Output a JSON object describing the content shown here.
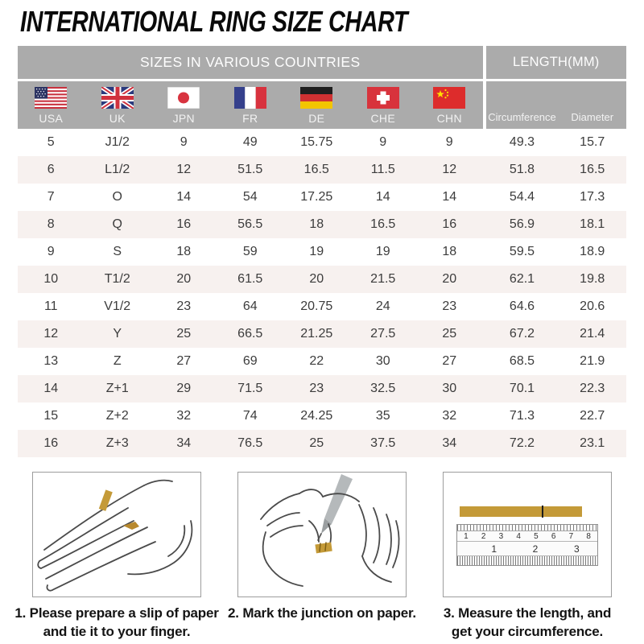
{
  "page_title": "INTERNATIONAL RING SIZE CHART",
  "chart_data": {
    "type": "table",
    "title": "INTERNATIONAL RING SIZE CHART",
    "header_groups": [
      {
        "label": "SIZES IN VARIOUS COUNTRIES",
        "span": 7
      },
      {
        "label": "LENGTH(MM)",
        "span": 2
      }
    ],
    "columns": [
      "USA",
      "UK",
      "JPN",
      "FR",
      "DE",
      "CHE",
      "CHN",
      "Circumference",
      "Diameter"
    ],
    "rows": [
      [
        "5",
        "J1/2",
        "9",
        "49",
        "15.75",
        "9",
        "9",
        "49.3",
        "15.7"
      ],
      [
        "6",
        "L1/2",
        "12",
        "51.5",
        "16.5",
        "11.5",
        "12",
        "51.8",
        "16.5"
      ],
      [
        "7",
        "O",
        "14",
        "54",
        "17.25",
        "14",
        "14",
        "54.4",
        "17.3"
      ],
      [
        "8",
        "Q",
        "16",
        "56.5",
        "18",
        "16.5",
        "16",
        "56.9",
        "18.1"
      ],
      [
        "9",
        "S",
        "18",
        "59",
        "19",
        "19",
        "18",
        "59.5",
        "18.9"
      ],
      [
        "10",
        "T1/2",
        "20",
        "61.5",
        "20",
        "21.5",
        "20",
        "62.1",
        "19.8"
      ],
      [
        "11",
        "V1/2",
        "23",
        "64",
        "20.75",
        "24",
        "23",
        "64.6",
        "20.6"
      ],
      [
        "12",
        "Y",
        "25",
        "66.5",
        "21.25",
        "27.5",
        "25",
        "67.2",
        "21.4"
      ],
      [
        "13",
        "Z",
        "27",
        "69",
        "22",
        "30",
        "27",
        "68.5",
        "21.9"
      ],
      [
        "14",
        "Z+1",
        "29",
        "71.5",
        "23",
        "32.5",
        "30",
        "70.1",
        "22.3"
      ],
      [
        "15",
        "Z+2",
        "32",
        "74",
        "24.25",
        "35",
        "32",
        "71.3",
        "22.7"
      ],
      [
        "16",
        "Z+3",
        "34",
        "76.5",
        "25",
        "37.5",
        "34",
        "72.2",
        "23.1"
      ]
    ]
  },
  "flags": [
    {
      "country": "USA",
      "icon": "usa-flag-icon"
    },
    {
      "country": "UK",
      "icon": "uk-flag-icon"
    },
    {
      "country": "JPN",
      "icon": "japan-flag-icon"
    },
    {
      "country": "FR",
      "icon": "france-flag-icon"
    },
    {
      "country": "DE",
      "icon": "germany-flag-icon"
    },
    {
      "country": "CHE",
      "icon": "switzerland-flag-icon"
    },
    {
      "country": "CHN",
      "icon": "china-flag-icon"
    }
  ],
  "instructions": [
    {
      "illustration": "hand-with-paper-slip-illustration",
      "line1": "1. Please prepare a slip of paper",
      "line2": "and tie it to your finger."
    },
    {
      "illustration": "mark-junction-illustration",
      "line1": "2. Mark the junction on paper.",
      "line2": ""
    },
    {
      "illustration": "ruler-measure-illustration",
      "line1": "3. Measure the length, and",
      "line2": "get your circumference."
    }
  ],
  "ruler": {
    "cm_numbers": [
      "1",
      "2",
      "3",
      "4",
      "5",
      "6",
      "7",
      "8"
    ],
    "inch_numbers": [
      "1",
      "2",
      "3"
    ]
  },
  "colors": {
    "header_bg": "#ababab",
    "alt_row_bg": "#f7f1ef",
    "paper_gold": "#c49a38",
    "text_dark": "#3c3c3c",
    "header_text": "#ffffff"
  }
}
